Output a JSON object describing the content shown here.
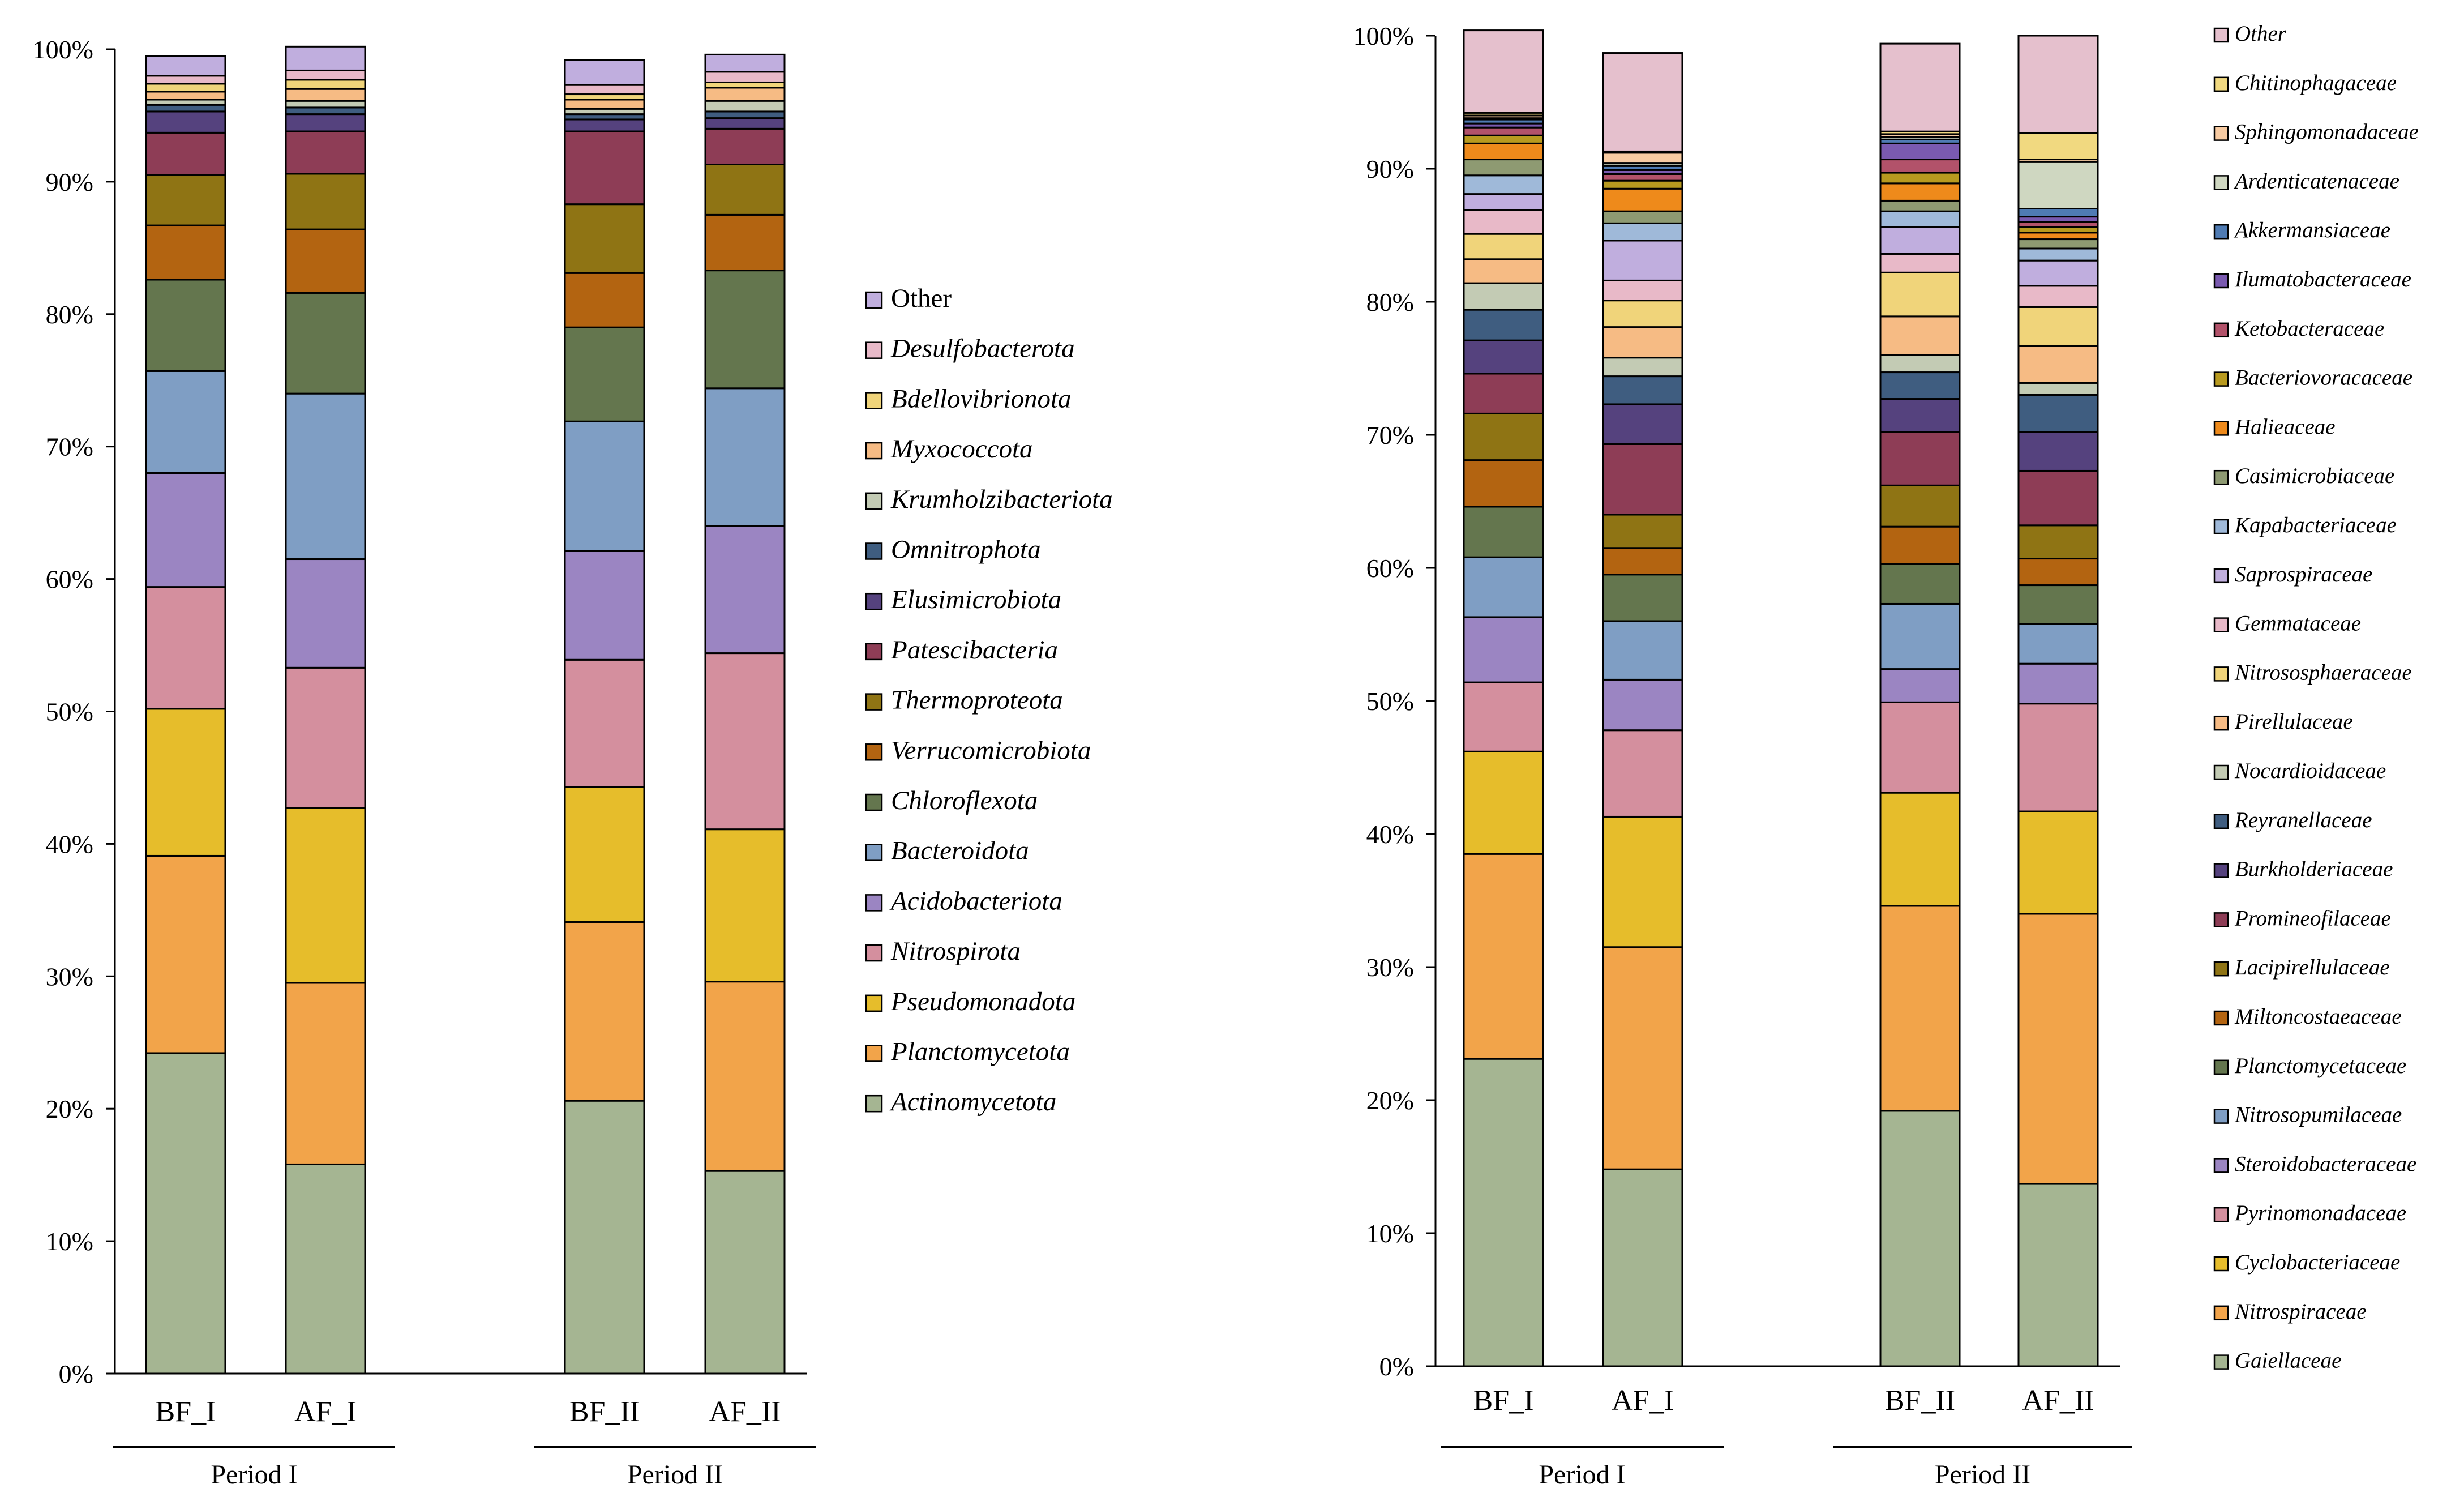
{
  "chart_data": [
    {
      "type": "bar",
      "stacked": true,
      "categories": [
        "BF_I",
        "AF_I",
        "BF_II",
        "AF_II"
      ],
      "groups": [
        {
          "label": "Period I",
          "categories": [
            "BF_I",
            "AF_I"
          ]
        },
        {
          "label": "Period II",
          "categories": [
            "BF_II",
            "AF_II"
          ]
        }
      ],
      "ylim": [
        0,
        100
      ],
      "yticks": [
        "0%",
        "10%",
        "20%",
        "30%",
        "40%",
        "50%",
        "60%",
        "70%",
        "80%",
        "90%",
        "100%"
      ],
      "grid": false,
      "legend_position": "right",
      "series": [
        {
          "name": "Actinomycetota",
          "color": "#a5b592",
          "values": [
            24.2,
            15.8,
            20.6,
            15.3
          ]
        },
        {
          "name": "Planctomycetota",
          "color": "#f2a44a",
          "values": [
            14.9,
            13.7,
            13.5,
            14.3
          ]
        },
        {
          "name": "Pseudomonadota",
          "color": "#e6bd2b",
          "values": [
            11.1,
            13.2,
            10.2,
            11.5
          ]
        },
        {
          "name": "Nitrospirota",
          "color": "#d48f9e",
          "values": [
            9.2,
            10.6,
            9.6,
            13.3
          ]
        },
        {
          "name": "Acidobacteriota",
          "color": "#9b85c2",
          "values": [
            8.6,
            8.2,
            8.2,
            9.6
          ]
        },
        {
          "name": "Bacteroidota",
          "color": "#7f9ec4",
          "values": [
            7.7,
            12.5,
            9.8,
            10.4
          ]
        },
        {
          "name": "Chloroflexota",
          "color": "#64764e",
          "values": [
            6.9,
            7.6,
            7.1,
            8.9
          ]
        },
        {
          "name": "Verrucomicrobiota",
          "color": "#b36411",
          "values": [
            4.1,
            4.8,
            4.1,
            4.2
          ]
        },
        {
          "name": "Thermoproteota",
          "color": "#8f7414",
          "values": [
            3.8,
            4.2,
            5.2,
            3.8
          ]
        },
        {
          "name": "Patescibacteria",
          "color": "#8e3d56",
          "values": [
            3.2,
            3.2,
            5.5,
            2.7
          ]
        },
        {
          "name": "Elusimicrobiota",
          "color": "#55427e",
          "values": [
            1.6,
            1.3,
            0.9,
            0.8
          ]
        },
        {
          "name": "Omnitrophota",
          "color": "#3f5d80",
          "values": [
            0.5,
            0.5,
            0.4,
            0.5
          ]
        },
        {
          "name": "Krumholzibacteriota",
          "color": "#c3cbb4",
          "values": [
            0.4,
            0.5,
            0.4,
            0.8
          ]
        },
        {
          "name": "Myxococcota",
          "color": "#f6bb84",
          "values": [
            0.6,
            0.9,
            0.7,
            1.0
          ]
        },
        {
          "name": "Bdellovibrionota",
          "color": "#f0d47a",
          "values": [
            0.6,
            0.7,
            0.4,
            0.4
          ]
        },
        {
          "name": "Desulfobacterota",
          "color": "#e8b9c8",
          "values": [
            0.6,
            0.7,
            0.7,
            0.8
          ]
        },
        {
          "name": "Other",
          "color": "#c0aede",
          "values": [
            1.5,
            1.8,
            1.9,
            1.3
          ]
        }
      ]
    },
    {
      "type": "bar",
      "stacked": true,
      "categories": [
        "BF_I",
        "AF_I",
        "BF_II",
        "AF_II"
      ],
      "groups": [
        {
          "label": "Period I",
          "categories": [
            "BF_I",
            "AF_I"
          ]
        },
        {
          "label": "Period II",
          "categories": [
            "BF_II",
            "AF_II"
          ]
        }
      ],
      "ylim": [
        0,
        100
      ],
      "yticks": [
        "0%",
        "10%",
        "20%",
        "30%",
        "40%",
        "50%",
        "60%",
        "70%",
        "80%",
        "90%",
        "100%"
      ],
      "grid": false,
      "legend_position": "right",
      "series": [
        {
          "name": "Gaiellaceae",
          "color": "#a5b592",
          "values": [
            23.1,
            14.8,
            19.2,
            13.7
          ]
        },
        {
          "name": "Nitrospiraceae",
          "color": "#f2a44a",
          "values": [
            15.4,
            16.7,
            15.4,
            20.3
          ]
        },
        {
          "name": "Cyclobacteriaceae",
          "color": "#e6bd2b",
          "values": [
            7.7,
            9.8,
            8.5,
            7.7
          ]
        },
        {
          "name": "Pyrinomonadaceae",
          "color": "#d48f9e",
          "values": [
            5.2,
            6.5,
            6.8,
            8.1
          ]
        },
        {
          "name": "Steroidobacteraceae",
          "color": "#9b85c2",
          "values": [
            4.9,
            3.8,
            2.5,
            3.0
          ]
        },
        {
          "name": "Nitrosopumilaceae",
          "color": "#7f9ec4",
          "values": [
            4.5,
            4.4,
            4.9,
            3.0
          ]
        },
        {
          "name": "Planctomycetaceae",
          "color": "#64764e",
          "values": [
            3.8,
            3.5,
            3.0,
            2.9
          ]
        },
        {
          "name": "Miltoncostaeaceae",
          "color": "#b36411",
          "values": [
            3.5,
            2.0,
            2.8,
            2.0
          ]
        },
        {
          "name": "Lacipirellulaceae",
          "color": "#8f7414",
          "values": [
            3.5,
            2.5,
            3.1,
            2.5
          ]
        },
        {
          "name": "Promineofilaceae",
          "color": "#8e3d56",
          "values": [
            3.0,
            5.3,
            4.0,
            4.1
          ]
        },
        {
          "name": "Burkholderiaceae",
          "color": "#55427e",
          "values": [
            2.5,
            3.0,
            2.5,
            2.9
          ]
        },
        {
          "name": "Reyranellaceae",
          "color": "#3f5d80",
          "values": [
            2.3,
            2.1,
            2.0,
            2.8
          ]
        },
        {
          "name": "Nocardioidaceae",
          "color": "#c3cbb4",
          "values": [
            2.0,
            1.4,
            1.3,
            0.9
          ]
        },
        {
          "name": "Pirellulaceae",
          "color": "#f6bb84",
          "values": [
            1.8,
            2.3,
            2.9,
            2.8
          ]
        },
        {
          "name": "Nitrososphaeraceae",
          "color": "#f0d47a",
          "values": [
            1.9,
            2.0,
            3.3,
            2.9
          ]
        },
        {
          "name": "Gemmataceae",
          "color": "#e8b9c8",
          "values": [
            1.8,
            1.5,
            1.4,
            1.6
          ]
        },
        {
          "name": "Saprospiraceae",
          "color": "#c0aede",
          "values": [
            1.2,
            3.0,
            2.0,
            1.9
          ]
        },
        {
          "name": "Kapabacteriaceae",
          "color": "#9fb9d9",
          "values": [
            1.4,
            1.3,
            1.2,
            0.9
          ]
        },
        {
          "name": "Casimicrobiaceae",
          "color": "#8e9a72",
          "values": [
            1.2,
            0.9,
            0.8,
            0.7
          ]
        },
        {
          "name": "Halieaceae",
          "color": "#ee8a1b",
          "values": [
            1.2,
            1.7,
            1.3,
            0.5
          ]
        },
        {
          "name": "Bacteriovoracaceae",
          "color": "#b89a1f",
          "values": [
            0.6,
            0.6,
            0.8,
            0.4
          ]
        },
        {
          "name": "Ketobacteraceae",
          "color": "#b2526a",
          "values": [
            0.6,
            0.5,
            1.0,
            0.4
          ]
        },
        {
          "name": "Ilumatobacteraceae",
          "color": "#7a5ab0",
          "values": [
            0.3,
            0.3,
            1.2,
            0.4
          ]
        },
        {
          "name": "Akkermansiaceae",
          "color": "#4f7bb3",
          "values": [
            0.3,
            0.3,
            0.3,
            0.6
          ]
        },
        {
          "name": "Ardenticatenaceae",
          "color": "#cfd7c1",
          "values": [
            0.1,
            0.2,
            0.2,
            3.5
          ]
        },
        {
          "name": "Sphingomonadaceae",
          "color": "#f8cba2",
          "values": [
            0.2,
            0.8,
            0.2,
            0.2
          ]
        },
        {
          "name": "Chitinophagaceae",
          "color": "#f1d980",
          "values": [
            0.2,
            0.1,
            0.2,
            2.0
          ]
        },
        {
          "name": "Other",
          "color": "#e5c0cd",
          "values": [
            6.2,
            7.4,
            6.6,
            7.3
          ]
        }
      ]
    }
  ]
}
